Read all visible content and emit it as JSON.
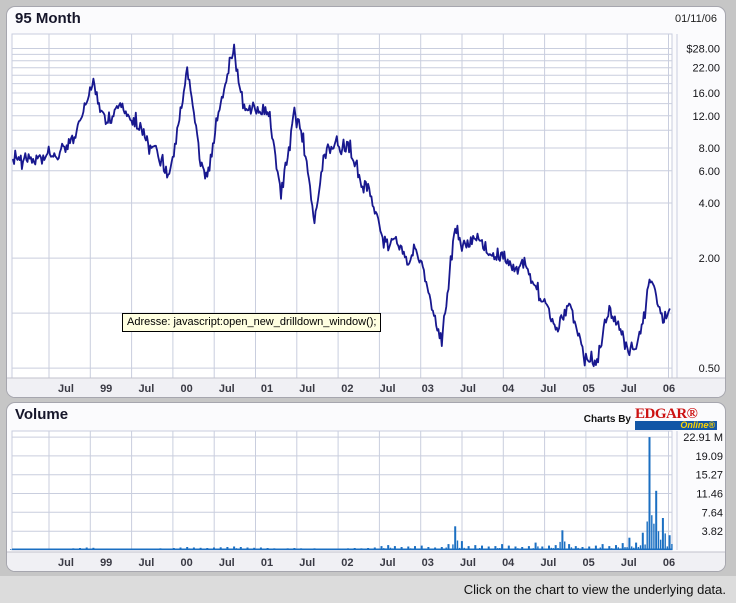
{
  "price_panel": {
    "title": "95 Month",
    "date": "01/11/06"
  },
  "tooltip": {
    "text": "Adresse: javascript:open_new_drilldown_window();"
  },
  "volume_panel": {
    "title": "Volume",
    "charts_by": "Charts By",
    "logo_top": "EDGAR®",
    "logo_bottom": "Online®"
  },
  "status_bar": {
    "text": "Click on the chart to view the underlying data."
  },
  "colors": {
    "price_line": "#18188f",
    "volume_bar": "#1b6fc2",
    "grid": "#c9cede",
    "strip_bg": "#f0f0f4",
    "strip_border": "#c2c2cc",
    "plot_bg": "#ffffff"
  },
  "chart_data": [
    {
      "type": "line",
      "title": "95 Month",
      "yscale": "log",
      "legend": "none",
      "grid": true,
      "x_tick_labels": [
        "Jul",
        "99",
        "Jul",
        "00",
        "Jul",
        "01",
        "Jul",
        "02",
        "Jul",
        "03",
        "Jul",
        "04",
        "Jul",
        "05",
        "Jul",
        "06"
      ],
      "y_tick_labels": [
        "$28.00",
        "22.00",
        "16.00",
        "12.00",
        "8.00",
        "6.00",
        "4.00",
        "2.00",
        "0.50"
      ],
      "y_tick_values": [
        28,
        22,
        16,
        12,
        8,
        6,
        4,
        2,
        0.5
      ],
      "grid_values": [
        28,
        26,
        24,
        22,
        20,
        18,
        16,
        14,
        12,
        10,
        8,
        6,
        4,
        2,
        1,
        0.5
      ],
      "ylim": [
        0.44,
        34
      ],
      "series_name": "price_usd_monthly",
      "values": [
        6.9,
        7.0,
        7.1,
        6.8,
        7.0,
        7.2,
        7.1,
        7.4,
        8.0,
        9.0,
        11.0,
        14.5,
        19.0,
        13.0,
        11.0,
        12.0,
        14.0,
        12.5,
        11.0,
        10.5,
        8.8,
        8.2,
        6.8,
        5.8,
        7.5,
        13.0,
        21.0,
        13.0,
        6.5,
        5.4,
        9.0,
        14.0,
        20.0,
        28.0,
        16.0,
        12.5,
        13.5,
        12.0,
        13.0,
        8.0,
        4.5,
        7.5,
        12.5,
        10.0,
        6.0,
        3.2,
        6.0,
        8.2,
        8.5,
        7.8,
        8.3,
        6.5,
        5.2,
        4.8,
        3.6,
        2.8,
        2.3,
        2.6,
        2.2,
        1.9,
        2.3,
        1.8,
        1.3,
        0.95,
        0.7,
        1.4,
        3.0,
        2.2,
        2.4,
        2.55,
        2.45,
        2.2,
        2.0,
        2.05,
        1.85,
        1.75,
        1.85,
        1.6,
        1.35,
        1.15,
        1.0,
        0.78,
        0.95,
        1.1,
        0.85,
        0.62,
        0.55,
        0.52,
        0.75,
        1.05,
        0.9,
        0.75,
        0.62,
        0.65,
        0.9,
        1.5,
        1.25,
        0.9,
        1.05
      ]
    },
    {
      "type": "bar",
      "title": "Volume",
      "legend": "none",
      "grid": true,
      "x_tick_labels": [
        "Jul",
        "99",
        "Jul",
        "00",
        "Jul",
        "01",
        "Jul",
        "02",
        "Jul",
        "03",
        "Jul",
        "04",
        "Jul",
        "05",
        "Jul",
        "06"
      ],
      "y_tick_labels": [
        "22.91 M",
        "19.09",
        "15.27",
        "11.46",
        "7.64",
        "3.82"
      ],
      "y_tick_values": [
        22.91,
        19.09,
        15.27,
        11.46,
        7.64,
        3.82
      ],
      "ylim": [
        0,
        24
      ],
      "series_name": "volume_millions_monthly",
      "values": [
        0.1,
        0.1,
        0.12,
        0.15,
        0.1,
        0.12,
        0.15,
        0.2,
        0.3,
        0.35,
        0.4,
        0.5,
        0.45,
        0.3,
        0.25,
        0.3,
        0.3,
        0.25,
        0.2,
        0.2,
        0.25,
        0.3,
        0.35,
        0.3,
        0.4,
        0.5,
        0.6,
        0.5,
        0.45,
        0.4,
        0.5,
        0.55,
        0.6,
        0.7,
        0.6,
        0.5,
        0.45,
        0.5,
        0.4,
        0.35,
        0.3,
        0.35,
        0.4,
        0.35,
        0.3,
        0.35,
        0.3,
        0.3,
        0.25,
        0.3,
        0.35,
        0.4,
        0.35,
        0.4,
        0.5,
        0.8,
        1.0,
        0.8,
        0.6,
        0.7,
        0.8,
        0.9,
        0.6,
        0.5,
        0.6,
        1.2,
        4.8,
        1.8,
        0.8,
        1.0,
        0.9,
        0.7,
        0.8,
        1.2,
        0.9,
        0.7,
        0.6,
        0.8,
        1.5,
        0.7,
        0.9,
        1.0,
        4.0,
        1.2,
        0.8,
        0.6,
        0.7,
        0.9,
        1.2,
        0.8,
        1.0,
        1.4,
        2.5,
        1.5,
        3.5,
        22.91,
        12.0,
        6.5,
        3.0
      ]
    }
  ]
}
